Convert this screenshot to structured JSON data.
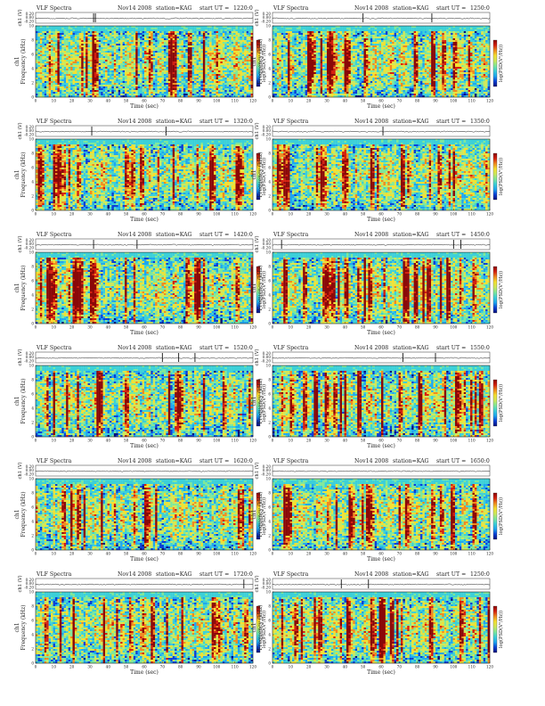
{
  "chart_data": {
    "type": "heatmap",
    "title": "VLF Spectra",
    "date": "Nov14 2008",
    "station": "station=KAG",
    "start_prefix": "start  UT  =",
    "panel_ylabel": "Frequency  (kHz)",
    "panel_ylabel_channel": "ch1",
    "xlabel": "Time  (sec)",
    "wave_ylabel": "ch1 (V)",
    "colorbar_label": "log(PSD(V²/Hz))",
    "xlim": [
      0,
      120
    ],
    "ylim": [
      0,
      10
    ],
    "x_ticks": [
      "0",
      "10",
      "20",
      "30",
      "40",
      "50",
      "60",
      "70",
      "80",
      "90",
      "100",
      "110",
      "120"
    ],
    "y_ticks": [
      "0",
      "2",
      "4",
      "6",
      "8",
      "10"
    ],
    "wave_ticks": [
      "0.20",
      "0.00",
      "-0.20"
    ],
    "colorscale": [
      "#08107a",
      "#0a3fd6",
      "#1ea6f0",
      "#3cd0d8",
      "#7fe89a",
      "#cfe85a",
      "#f5e030",
      "#f08a20",
      "#d42010",
      "#8a0808"
    ],
    "panels": [
      {
        "start_ut": "1220:0",
        "seed": 3,
        "spikes": [
          32,
          33
        ]
      },
      {
        "start_ut": "1250:0",
        "seed": 7,
        "spikes": [
          50,
          88
        ]
      },
      {
        "start_ut": "1320:0",
        "seed": 11,
        "spikes": [
          31,
          72
        ]
      },
      {
        "start_ut": "1350:0",
        "seed": 13,
        "spikes": [
          61
        ]
      },
      {
        "start_ut": "1420:0",
        "seed": 17,
        "spikes": [
          32,
          56
        ]
      },
      {
        "start_ut": "1450:0",
        "seed": 19,
        "spikes": [
          5,
          100,
          104
        ]
      },
      {
        "start_ut": "1520:0",
        "seed": 23,
        "spikes": [
          70,
          79,
          88
        ]
      },
      {
        "start_ut": "1550:0",
        "seed": 29,
        "spikes": [
          72,
          90
        ]
      },
      {
        "start_ut": "1620:0",
        "seed": 31,
        "spikes": []
      },
      {
        "start_ut": "1650:0",
        "seed": 37,
        "spikes": []
      },
      {
        "start_ut": "1720:0",
        "seed": 41,
        "spikes": [
          115
        ]
      },
      {
        "start_ut": "1250:0",
        "seed": 43,
        "spikes": [
          38,
          53
        ]
      }
    ]
  }
}
